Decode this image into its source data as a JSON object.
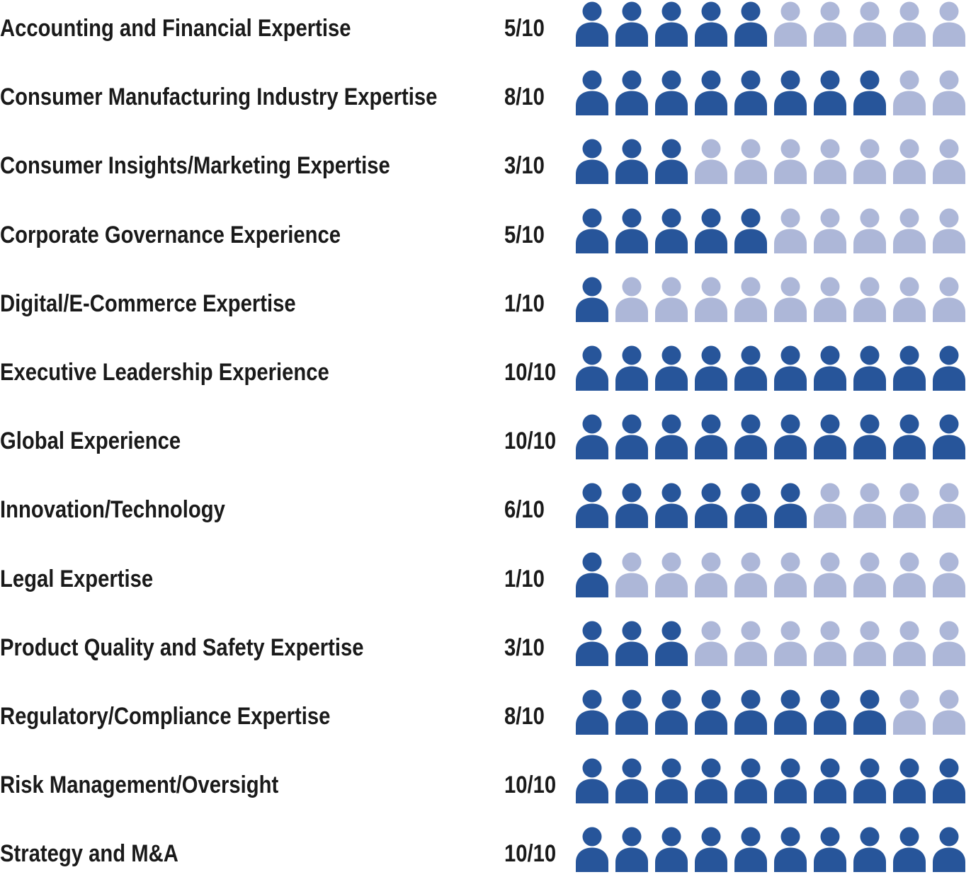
{
  "chart_data": {
    "type": "pictograph",
    "title": "",
    "max_value": 10,
    "colors": {
      "filled": "#27559A",
      "empty": "#ADB7D8",
      "text": "#1A1A1A"
    },
    "icon": "person-icon",
    "rows": [
      {
        "label": "Accounting and Financial Expertise",
        "value": 5,
        "display": "5/10"
      },
      {
        "label": "Consumer Manufacturing Industry Expertise",
        "value": 8,
        "display": "8/10"
      },
      {
        "label": "Consumer Insights/Marketing Expertise",
        "value": 3,
        "display": "3/10"
      },
      {
        "label": "Corporate Governance Experience",
        "value": 5,
        "display": "5/10"
      },
      {
        "label": "Digital/E-Commerce Expertise",
        "value": 1,
        "display": "1/10"
      },
      {
        "label": "Executive Leadership Experience",
        "value": 10,
        "display": "10/10"
      },
      {
        "label": "Global Experience",
        "value": 10,
        "display": "10/10"
      },
      {
        "label": "Innovation/Technology",
        "value": 6,
        "display": "6/10"
      },
      {
        "label": "Legal Expertise",
        "value": 1,
        "display": "1/10"
      },
      {
        "label": "Product Quality and Safety Expertise",
        "value": 3,
        "display": "3/10"
      },
      {
        "label": "Regulatory/Compliance Expertise",
        "value": 8,
        "display": "8/10"
      },
      {
        "label": "Risk Management/Oversight",
        "value": 10,
        "display": "10/10"
      },
      {
        "label": "Strategy and M&A",
        "value": 10,
        "display": "10/10"
      }
    ]
  }
}
